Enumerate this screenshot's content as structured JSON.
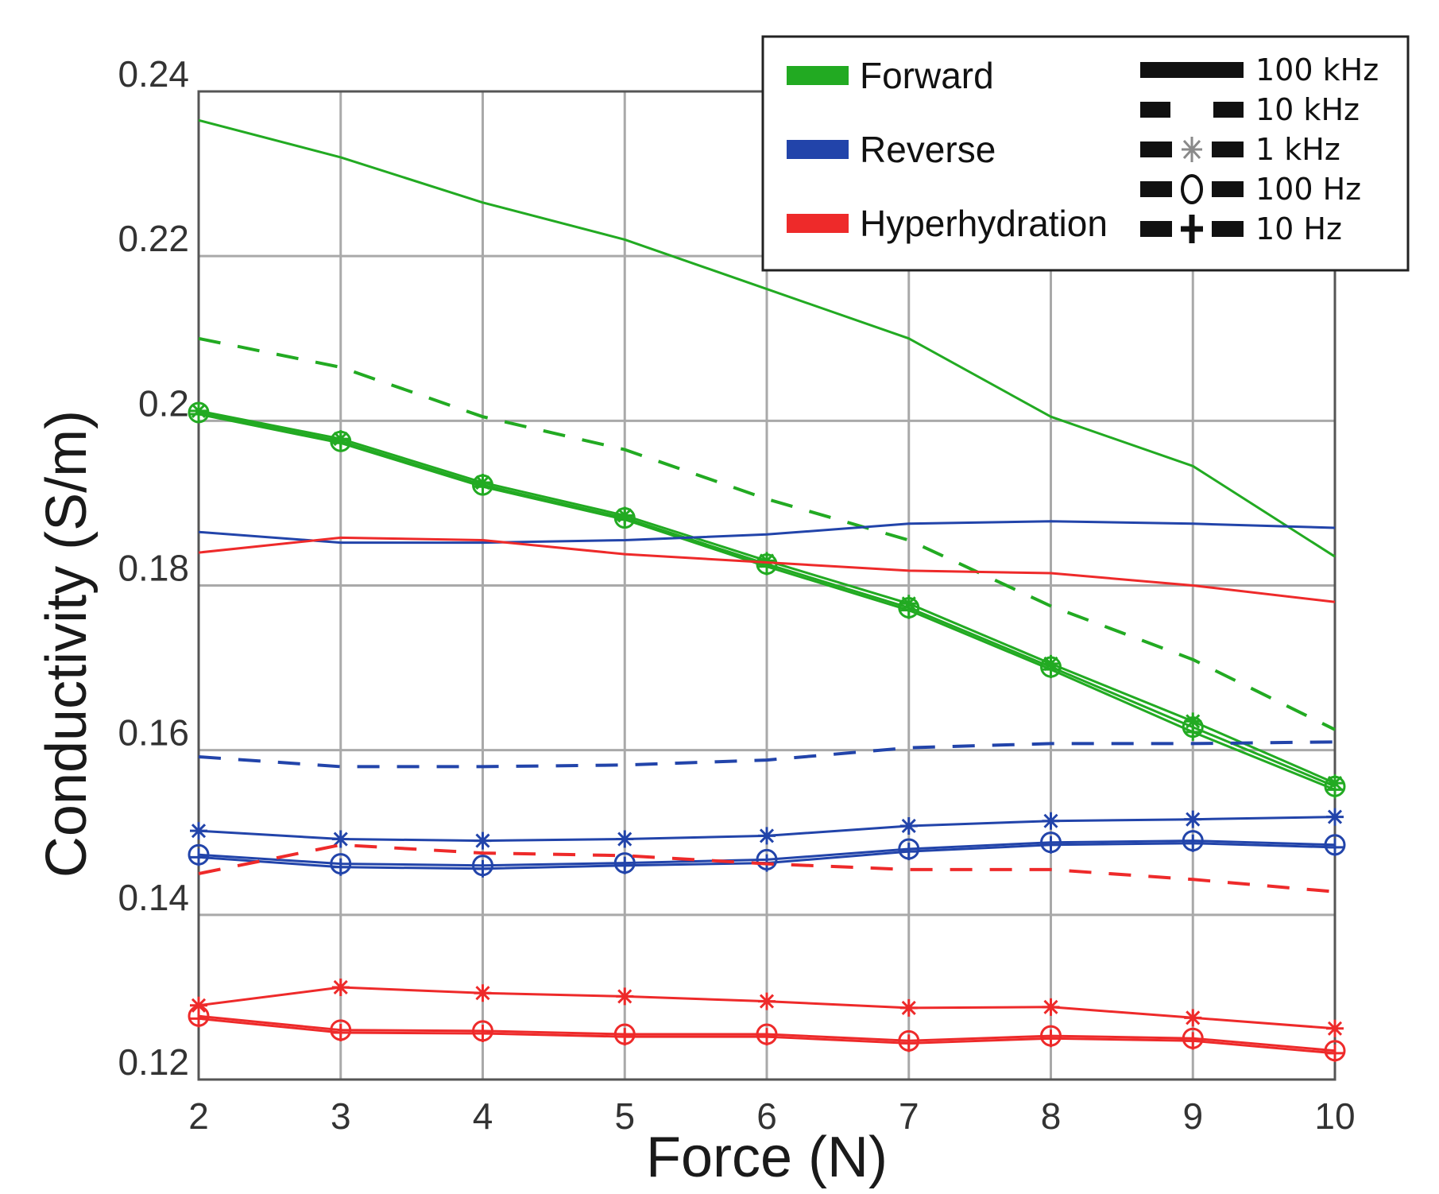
{
  "chart_data": {
    "type": "line",
    "title": "",
    "xlabel": "Force (N)",
    "ylabel": "Conductivity (S/m)",
    "xlim": [
      2,
      10
    ],
    "ylim": [
      0.12,
      0.24
    ],
    "x": [
      2,
      3,
      4,
      5,
      6,
      7,
      8,
      9,
      10
    ],
    "x_tick_labels": [
      "2",
      "3",
      "4",
      "5",
      "6",
      "7",
      "8",
      "9",
      "10"
    ],
    "y_ticks": [
      0.12,
      0.14,
      0.16,
      0.18,
      0.2,
      0.22,
      0.24
    ],
    "y_tick_labels": [
      "0.12",
      "0.14",
      "0.16",
      "0.18",
      "0.2",
      "0.22",
      "0.24"
    ],
    "grid": true,
    "legend_position": "top-right",
    "colors": {
      "forward": "#22aa22",
      "reverse": "#2244aa",
      "hyperhydration": "#ee2a2a"
    },
    "legend": {
      "conditions": [
        {
          "label": "Forward",
          "color": "#22aa22"
        },
        {
          "label": "Reverse",
          "color": "#2244aa"
        },
        {
          "label": "Hyperhydration",
          "color": "#ee2a2a"
        }
      ],
      "frequencies": [
        {
          "label": "100 kHz",
          "style": "solid",
          "marker": "none"
        },
        {
          "label": "10 kHz",
          "style": "dashed",
          "marker": "none"
        },
        {
          "label": "1 kHz",
          "style": "solid",
          "marker": "star"
        },
        {
          "label": "100 Hz",
          "style": "solid",
          "marker": "circle"
        },
        {
          "label": "10 Hz",
          "style": "solid",
          "marker": "plus"
        }
      ]
    },
    "series": [
      {
        "name": "Forward 100 kHz",
        "condition": "forward",
        "frequency": "100 kHz",
        "style": "solid",
        "marker": "none",
        "values": [
          0.2365,
          0.232,
          0.2265,
          0.222,
          0.216,
          0.21,
          0.2005,
          0.1945,
          0.1835
        ]
      },
      {
        "name": "Forward 10 kHz",
        "condition": "forward",
        "frequency": "10 kHz",
        "style": "dashed",
        "marker": "none",
        "values": [
          0.21,
          0.2065,
          0.2005,
          0.1965,
          0.1905,
          0.1855,
          0.1775,
          0.171,
          0.1625
        ]
      },
      {
        "name": "Forward 1 kHz",
        "condition": "forward",
        "frequency": "1 kHz",
        "style": "solid",
        "marker": "star",
        "values": [
          0.2012,
          0.1978,
          0.1925,
          0.1885,
          0.183,
          0.1778,
          0.1705,
          0.1635,
          0.156
        ]
      },
      {
        "name": "Forward 100 Hz",
        "condition": "forward",
        "frequency": "100 Hz",
        "style": "solid",
        "marker": "circle",
        "values": [
          0.201,
          0.1975,
          0.1922,
          0.1882,
          0.1826,
          0.1773,
          0.1701,
          0.1628,
          0.1556
        ]
      },
      {
        "name": "Forward 10 Hz",
        "condition": "forward",
        "frequency": "10 Hz",
        "style": "solid",
        "marker": "plus",
        "values": [
          0.2008,
          0.1973,
          0.192,
          0.188,
          0.1823,
          0.177,
          0.1698,
          0.1622,
          0.1552
        ]
      },
      {
        "name": "Reverse 100 kHz",
        "condition": "reverse",
        "frequency": "100 kHz",
        "style": "solid",
        "marker": "none",
        "values": [
          0.1865,
          0.1852,
          0.1852,
          0.1855,
          0.1862,
          0.1875,
          0.1878,
          0.1875,
          0.187
        ]
      },
      {
        "name": "Reverse 10 kHz",
        "condition": "reverse",
        "frequency": "10 kHz",
        "style": "dashed",
        "marker": "none",
        "values": [
          0.1592,
          0.158,
          0.158,
          0.1582,
          0.1588,
          0.1603,
          0.1608,
          0.1608,
          0.161
        ]
      },
      {
        "name": "Reverse 1 kHz",
        "condition": "reverse",
        "frequency": "1 kHz",
        "style": "solid",
        "marker": "star",
        "values": [
          0.1502,
          0.1492,
          0.149,
          0.1492,
          0.1496,
          0.1508,
          0.1514,
          0.1516,
          0.1519
        ]
      },
      {
        "name": "Reverse 100 Hz",
        "condition": "reverse",
        "frequency": "100 Hz",
        "style": "solid",
        "marker": "circle",
        "values": [
          0.1473,
          0.1462,
          0.146,
          0.1463,
          0.1467,
          0.148,
          0.1488,
          0.149,
          0.1485
        ]
      },
      {
        "name": "Reverse 10 Hz",
        "condition": "reverse",
        "frequency": "10 Hz",
        "style": "solid",
        "marker": "plus",
        "values": [
          0.147,
          0.1458,
          0.1456,
          0.146,
          0.1463,
          0.1477,
          0.1485,
          0.1487,
          0.1482
        ]
      },
      {
        "name": "Hyperhydration 100 kHz",
        "condition": "hyperhydration",
        "frequency": "100 kHz",
        "style": "solid",
        "marker": "none",
        "values": [
          0.184,
          0.1858,
          0.1855,
          0.1838,
          0.1828,
          0.1818,
          0.1815,
          0.18,
          0.178
        ]
      },
      {
        "name": "Hyperhydration 10 kHz",
        "condition": "hyperhydration",
        "frequency": "10 kHz",
        "style": "dashed",
        "marker": "none",
        "values": [
          0.145,
          0.1485,
          0.1475,
          0.1472,
          0.1462,
          0.1455,
          0.1455,
          0.1443,
          0.1428
        ]
      },
      {
        "name": "Hyperhydration 1 kHz",
        "condition": "hyperhydration",
        "frequency": "1 kHz",
        "style": "solid",
        "marker": "star",
        "values": [
          0.129,
          0.1312,
          0.1305,
          0.1301,
          0.1295,
          0.1287,
          0.1288,
          0.1275,
          0.1262
        ]
      },
      {
        "name": "Hyperhydration 100 Hz",
        "condition": "hyperhydration",
        "frequency": "100 Hz",
        "style": "solid",
        "marker": "circle",
        "values": [
          0.1277,
          0.126,
          0.1259,
          0.1255,
          0.1255,
          0.1247,
          0.1253,
          0.125,
          0.1235
        ]
      },
      {
        "name": "Hyperhydration 10 Hz",
        "condition": "hyperhydration",
        "frequency": "10 Hz",
        "style": "solid",
        "marker": "plus",
        "values": [
          0.1274,
          0.1257,
          0.1256,
          0.1252,
          0.1252,
          0.1244,
          0.125,
          0.1247,
          0.1232
        ]
      }
    ]
  }
}
